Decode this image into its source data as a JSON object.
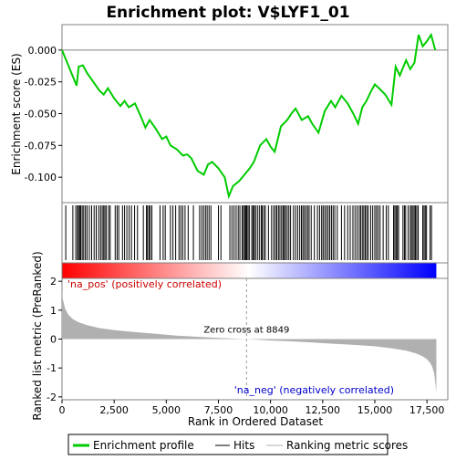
{
  "chart_data": {
    "type": "line",
    "title": "Enrichment plot: V$LYF1_01",
    "panels": [
      {
        "name": "enrichment",
        "ylabel": "Enrichment score (ES)",
        "ylim": [
          -0.12,
          0.02
        ],
        "yticks": [
          "0.000",
          "-0.025",
          "-0.050",
          "-0.075",
          "-0.100"
        ],
        "ytick_values": [
          0,
          -0.025,
          -0.05,
          -0.075,
          -0.1
        ],
        "series": [
          {
            "name": "Enrichment profile",
            "color": "#00cc00",
            "x": [
              0,
              200,
              500,
              700,
              800,
              1000,
              1200,
              1500,
              1800,
              2000,
              2200,
              2500,
              2800,
              3000,
              3200,
              3500,
              3800,
              4000,
              4200,
              4500,
              4800,
              5000,
              5200,
              5500,
              5800,
              6000,
              6200,
              6500,
              6800,
              7000,
              7200,
              7500,
              7800,
              8000,
              8200,
              8500,
              8800,
              9000,
              9200,
              9500,
              9800,
              10000,
              10200,
              10500,
              10800,
              11000,
              11200,
              11500,
              11800,
              12000,
              12300,
              12600,
              12900,
              13100,
              13400,
              13700,
              14000,
              14200,
              14400,
              14600,
              14800,
              15000,
              15200,
              15500,
              15800,
              16000,
              16200,
              16500,
              16700,
              16900,
              17100,
              17300,
              17500,
              17700,
              17900
            ],
            "y": [
              0.0,
              -0.008,
              -0.02,
              -0.028,
              -0.013,
              -0.012,
              -0.018,
              -0.025,
              -0.032,
              -0.035,
              -0.03,
              -0.038,
              -0.044,
              -0.04,
              -0.045,
              -0.042,
              -0.053,
              -0.061,
              -0.055,
              -0.062,
              -0.07,
              -0.068,
              -0.075,
              -0.078,
              -0.083,
              -0.082,
              -0.085,
              -0.095,
              -0.098,
              -0.09,
              -0.088,
              -0.093,
              -0.1,
              -0.115,
              -0.107,
              -0.103,
              -0.097,
              -0.093,
              -0.088,
              -0.075,
              -0.07,
              -0.076,
              -0.08,
              -0.06,
              -0.055,
              -0.05,
              -0.046,
              -0.055,
              -0.052,
              -0.058,
              -0.065,
              -0.048,
              -0.04,
              -0.045,
              -0.036,
              -0.042,
              -0.051,
              -0.058,
              -0.045,
              -0.04,
              -0.033,
              -0.027,
              -0.03,
              -0.035,
              -0.043,
              -0.013,
              -0.02,
              -0.008,
              -0.015,
              -0.01,
              0.012,
              0.003,
              0.007,
              0.012,
              0.0
            ]
          }
        ]
      },
      {
        "name": "ranked-metric",
        "ylabel": "Ranked list metric (PreRanked)",
        "ylim": [
          -2.1,
          2.1
        ],
        "yticks": [
          "2",
          "1",
          "0",
          "-1",
          "-2"
        ],
        "ytick_values": [
          2,
          1,
          0,
          -1,
          -2
        ],
        "series": [
          {
            "name": "Ranking metric scores",
            "color": "#b0b0b0",
            "x": [
              0,
              50,
              150,
              300,
              500,
              800,
              1200,
              1800,
              2500,
              3500,
              4500,
              5500,
              6500,
              7500,
              8849,
              10000,
              11000,
              12000,
              13000,
              14000,
              15000,
              15800,
              16500,
              17000,
              17300,
              17500,
              17650,
              17750,
              17850,
              17900,
              17950
            ],
            "y": [
              1.65,
              1.35,
              1.05,
              0.85,
              0.7,
              0.58,
              0.48,
              0.38,
              0.31,
              0.24,
              0.18,
              0.12,
              0.08,
              0.04,
              0.0,
              -0.05,
              -0.08,
              -0.12,
              -0.16,
              -0.2,
              -0.25,
              -0.32,
              -0.4,
              -0.5,
              -0.6,
              -0.7,
              -0.82,
              -0.95,
              -1.2,
              -1.5,
              -1.85
            ]
          }
        ]
      }
    ],
    "x_axis": {
      "label": "Rank in Ordered Dataset",
      "lim": [
        0,
        18500
      ],
      "ticks": [
        "0",
        "2,500",
        "5,000",
        "7,500",
        "10,000",
        "12,500",
        "15,000",
        "17,500"
      ],
      "tick_values": [
        0,
        2500,
        5000,
        7500,
        10000,
        12500,
        15000,
        17500
      ]
    },
    "hits": [
      180,
      520,
      660,
      740,
      790,
      850,
      900,
      970,
      1040,
      1120,
      1200,
      1310,
      1420,
      1540,
      1640,
      1760,
      1850,
      1930,
      2000,
      2060,
      2130,
      2240,
      2310,
      2550,
      2640,
      2720,
      2900,
      3000,
      3110,
      3220,
      3330,
      3480,
      3620,
      3900,
      4050,
      4100,
      4170,
      4230,
      4310,
      4700,
      4850,
      4950,
      5200,
      5320,
      5450,
      5610,
      5700,
      5790,
      5900,
      6050,
      6300,
      6600,
      6700,
      6790,
      6880,
      6960,
      7050,
      7140,
      7500,
      7620,
      8050,
      8150,
      8250,
      8350,
      8450,
      8530,
      8640,
      8700,
      8760,
      8810,
      8860,
      8920,
      8980,
      9100,
      9160,
      9220,
      9280,
      9370,
      9460,
      9550,
      9600,
      9680,
      9750,
      9900,
      10050,
      10150,
      10230,
      10300,
      10380,
      10450,
      10530,
      10600,
      10660,
      10720,
      10800,
      10880,
      10960,
      11100,
      11200,
      11300,
      11400,
      11480,
      11550,
      11620,
      11700,
      11780,
      11850,
      11950,
      12100,
      12250,
      12350,
      12450,
      12520,
      12600,
      12680,
      12760,
      12840,
      12920,
      13000,
      13080,
      13200,
      13400,
      13550,
      13700,
      13820,
      13950,
      14050,
      14150,
      14250,
      14320,
      14400,
      14470,
      14540,
      14610,
      14680,
      14800,
      14900,
      15000,
      15080,
      15160,
      15250,
      15400,
      15550,
      15650,
      15900,
      15960,
      16020,
      16080,
      16140,
      16350,
      16420,
      16480,
      16600,
      16700,
      16760,
      16830,
      16890,
      16950,
      17010,
      17080,
      17300,
      17360,
      17420,
      17480,
      17650,
      17720
    ],
    "heatmap_colors": [
      "#ff0000",
      "#ffffff",
      "#0000ff"
    ],
    "zero_cross": "Zero cross at 8849",
    "zero_cross_x": 8849,
    "pos_label": "'na_pos' (positively correlated)",
    "neg_label": "'na_neg' (negatively correlated)",
    "legend": [
      {
        "label": "Enrichment profile",
        "color": "#00cc00"
      },
      {
        "label": "Hits",
        "color": "#000000"
      },
      {
        "label": "Ranking metric scores",
        "color": "#b0b0b0"
      }
    ]
  }
}
